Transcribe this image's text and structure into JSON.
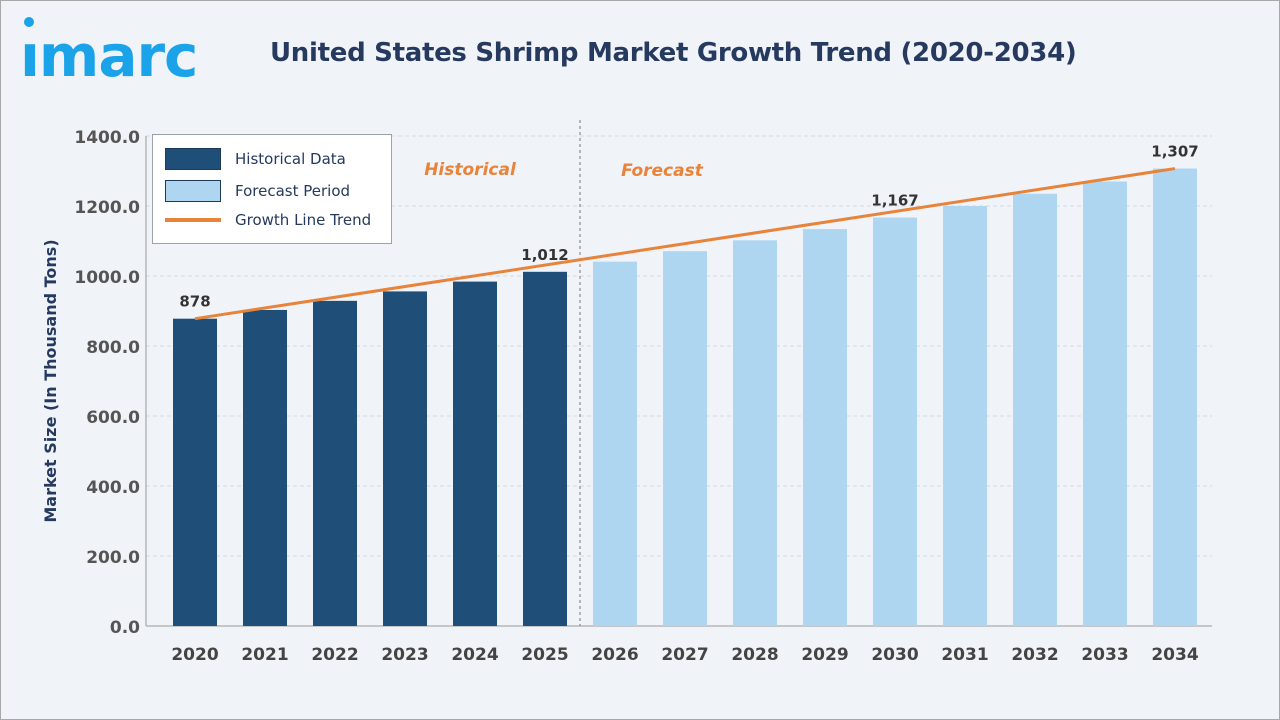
{
  "brand": {
    "logo_text": "imarc",
    "color": "#1aa3e8"
  },
  "chart_data": {
    "type": "bar",
    "title": "United States Shrimp Market Growth Trend (2020-2034)",
    "ylabel": "Market Size (In Thousand Tons)",
    "xlabel": "",
    "ylim": [
      0,
      1400
    ],
    "yticks": [
      "0.0",
      "200.0",
      "400.0",
      "600.0",
      "800.0",
      "1000.0",
      "1200.0",
      "1400.0"
    ],
    "grid": true,
    "categories": [
      "2020",
      "2021",
      "2022",
      "2023",
      "2024",
      "2025",
      "2026",
      "2027",
      "2028",
      "2029",
      "2030",
      "2031",
      "2032",
      "2033",
      "2034"
    ],
    "values": [
      878,
      903,
      929,
      956,
      984,
      1012,
      1041,
      1071,
      1102,
      1134,
      1167,
      1200,
      1235,
      1270,
      1307
    ],
    "historical_count": 6,
    "data_labels": {
      "2020": "878",
      "2025": "1,012",
      "2030": "1,167",
      "2034": "1,307"
    },
    "region_labels": {
      "historical": "Historical",
      "forecast": "Forecast"
    },
    "legend": {
      "placement": "top-left",
      "items": [
        {
          "label": "Historical Data",
          "color": "#1f4e79"
        },
        {
          "label": "Forecast Period",
          "color": "#aed6f1"
        },
        {
          "label": "Growth Line Trend",
          "color": "#e8833a"
        }
      ]
    },
    "colors": {
      "historical": "#1f4e79",
      "forecast": "#aed6f1",
      "trend": "#e8833a",
      "text": "#253a5e",
      "region_label": "#e8833a"
    }
  }
}
